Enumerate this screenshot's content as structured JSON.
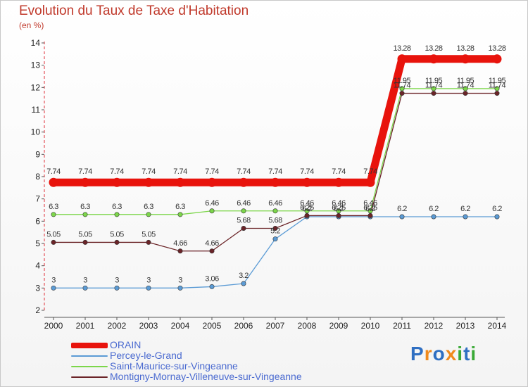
{
  "title": "Evolution du Taux de Taxe d'Habitation",
  "subtitle": "(en %)",
  "logo": "Proxiti",
  "chart_data": {
    "type": "line",
    "title": "Evolution du Taux de Taxe d'Habitation",
    "ylabel": "(en %)",
    "xlabel": "",
    "x": [
      "2000",
      "2001",
      "2002",
      "2003",
      "2004",
      "2005",
      "2006",
      "2007",
      "2008",
      "2009",
      "2010",
      "2011",
      "2012",
      "2013",
      "2014"
    ],
    "ylim": [
      2,
      14
    ],
    "yticks": [
      2,
      3,
      4,
      5,
      6,
      7,
      8,
      9,
      10,
      11,
      12,
      13,
      14
    ],
    "grid": false,
    "legend_position": "bottom-left",
    "series": [
      {
        "name": "ORAIN",
        "color": "#e8130c",
        "values": [
          7.74,
          7.74,
          7.74,
          7.74,
          7.74,
          7.74,
          7.74,
          7.74,
          7.74,
          7.74,
          7.74,
          13.28,
          13.28,
          13.28,
          13.28
        ]
      },
      {
        "name": "Percey-le-Grand",
        "color": "#5b9bd5",
        "values": [
          3,
          3,
          3,
          3,
          3,
          3.06,
          3.2,
          5.2,
          6.2,
          6.2,
          6.2,
          6.2,
          6.2,
          6.2,
          6.2
        ]
      },
      {
        "name": "Saint-Maurice-sur-Vingeanne",
        "color": "#7cd64a",
        "values": [
          6.3,
          6.3,
          6.3,
          6.3,
          6.3,
          6.46,
          6.46,
          6.46,
          6.46,
          6.46,
          6.46,
          11.95,
          11.95,
          11.95,
          11.95
        ]
      },
      {
        "name": "Montigny-Mornay-Villeneuve-sur-Vingeanne",
        "color": "#6b2428",
        "values": [
          5.05,
          5.05,
          5.05,
          5.05,
          4.66,
          4.66,
          5.68,
          5.68,
          6.25,
          6.25,
          6.25,
          11.74,
          11.74,
          11.74,
          11.74
        ]
      }
    ],
    "data_labels": [
      [
        "7.74",
        "7.74",
        "7.74",
        "7.74",
        "7.74",
        "7.74",
        "7.74",
        "7.74",
        "7.74",
        "7.74",
        "7.74",
        "13.28",
        "13.28",
        "13.28",
        "13.28"
      ],
      [
        "3",
        "3",
        "3",
        "3",
        "3",
        "3.06",
        "3.2",
        "5.2",
        "6.2",
        "6.2",
        "6.2",
        "6.2",
        "6.2",
        "6.2",
        "6.2"
      ],
      [
        "6.3",
        "6.3",
        "6.3",
        "6.3",
        "6.3",
        "6.46",
        "6.46",
        "6.46",
        "6.46",
        "6.46",
        "6.46",
        "11.95",
        "11.95",
        "11.95",
        "11.95"
      ],
      [
        "5.05",
        "5.05",
        "5.05",
        "5.05",
        "4.66",
        "4.66",
        "5.68",
        "5.68",
        "6.25",
        "6.25",
        "6.25",
        "11.74",
        "11.74",
        "11.74",
        "11.74"
      ]
    ]
  }
}
